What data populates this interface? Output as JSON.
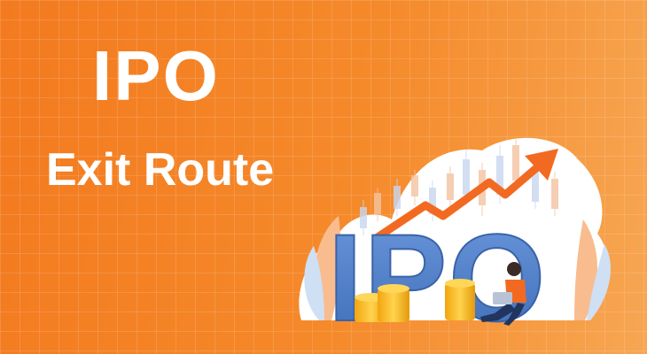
{
  "banner": {
    "title": "IPO",
    "subtitle": "Exit Route",
    "illustration_text": "IPO"
  },
  "colors": {
    "background_start": "#f37a1f",
    "background_end": "#f7a653",
    "text": "#ffffff",
    "letters": "#4f7fc9",
    "arrow": "#f26a21",
    "coins": "#f5b51b"
  }
}
